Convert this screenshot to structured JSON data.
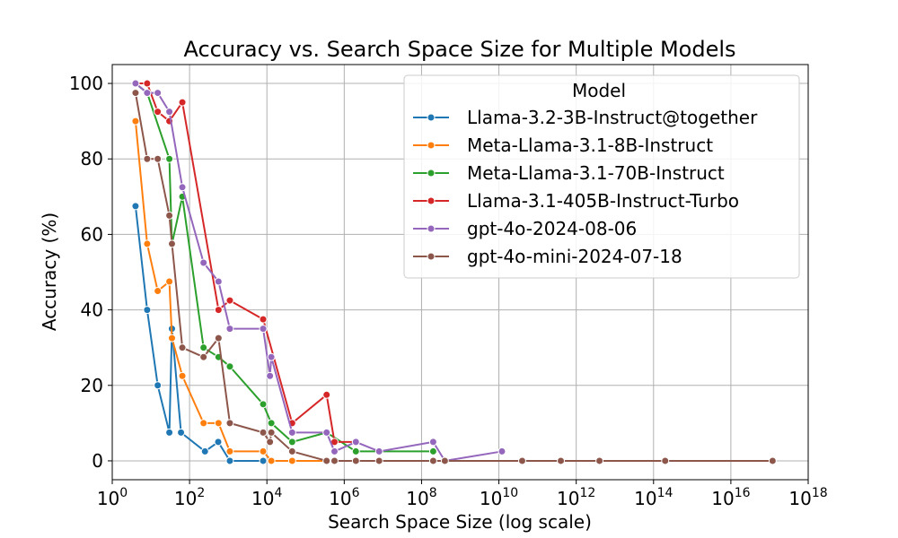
{
  "chart_data": {
    "type": "line",
    "title": "Accuracy vs. Search Space Size for Multiple Models",
    "xlabel": "Search Space Size (log scale)",
    "ylabel": "Accuracy (%)",
    "x_scale": "log",
    "xlim": [
      1,
      1e+18
    ],
    "ylim": [
      -5,
      105
    ],
    "x_tick_exponents": [
      0,
      2,
      4,
      6,
      8,
      10,
      12,
      14,
      16,
      18
    ],
    "x_tick_base": "10",
    "y_ticks": [
      0,
      20,
      40,
      60,
      80,
      100
    ],
    "grid": true,
    "legend": {
      "title": "Model",
      "placement": "top-right"
    },
    "series": [
      {
        "name": "Llama-3.2-3B-Instruct@together",
        "color": "#1f77b4",
        "x": [
          4,
          8,
          15,
          30,
          35,
          60,
          250,
          550,
          1100,
          8000
        ],
        "y": [
          67.5,
          40,
          20,
          7.5,
          35,
          7.5,
          2.5,
          5,
          0,
          0
        ]
      },
      {
        "name": "Meta-Llama-3.1-8B-Instruct",
        "color": "#ff7f0e",
        "x": [
          4,
          8,
          15,
          30,
          35,
          65,
          230,
          560,
          1100,
          8000,
          13000,
          45000,
          350000,
          560000,
          2000000
        ],
        "y": [
          90,
          57.5,
          45,
          47.5,
          32.5,
          22.5,
          10,
          10,
          2.5,
          2.5,
          0,
          0,
          0,
          0,
          0
        ]
      },
      {
        "name": "Meta-Llama-3.1-70B-Instruct",
        "color": "#2ca02c",
        "x": [
          4,
          8,
          30,
          35,
          65,
          230,
          560,
          1100,
          8000,
          13000,
          45000,
          350000,
          2000000,
          200000000
        ],
        "y": [
          100,
          97.5,
          80,
          57.5,
          70,
          30,
          27.5,
          25,
          15,
          10,
          5,
          7.5,
          2.5,
          2.5
        ]
      },
      {
        "name": "Llama-3.1-405B-Instruct-Turbo",
        "color": "#d62728",
        "x": [
          4,
          8,
          15,
          30,
          65,
          560,
          1100,
          8000,
          45000,
          350000,
          560000,
          2000000
        ],
        "y": [
          100,
          100,
          92.5,
          90,
          95,
          40,
          42.5,
          37.5,
          10,
          17.5,
          5,
          5
        ]
      },
      {
        "name": "gpt-4o-2024-08-06",
        "color": "#9467bd",
        "x": [
          4,
          8,
          15,
          30,
          65,
          230,
          560,
          1100,
          8000,
          12000,
          13000,
          45000,
          350000,
          560000,
          2000000,
          8000000,
          200000000,
          400000000,
          12000000000
        ],
        "y": [
          100,
          97.5,
          97.5,
          92.5,
          72.5,
          52.5,
          47.5,
          35,
          35,
          22.5,
          27.5,
          7.5,
          7.5,
          2.5,
          5,
          2.5,
          5,
          0,
          2.5
        ]
      },
      {
        "name": "gpt-4o-mini-2024-07-18",
        "color": "#8c564b",
        "x": [
          4,
          8,
          15,
          30,
          35,
          65,
          230,
          560,
          1100,
          8000,
          12000,
          13000,
          45000,
          350000,
          560000,
          2000000,
          8000000,
          200000000,
          400000000,
          40000000000,
          400000000000,
          4000000000000,
          200000000000000,
          120000000000000000
        ],
        "y": [
          97.5,
          80,
          80,
          65,
          57.5,
          30,
          27.5,
          32.5,
          10,
          7.5,
          5,
          7.5,
          2.5,
          0,
          0,
          0,
          0,
          0,
          0,
          0,
          0,
          0,
          0,
          0
        ]
      }
    ]
  }
}
